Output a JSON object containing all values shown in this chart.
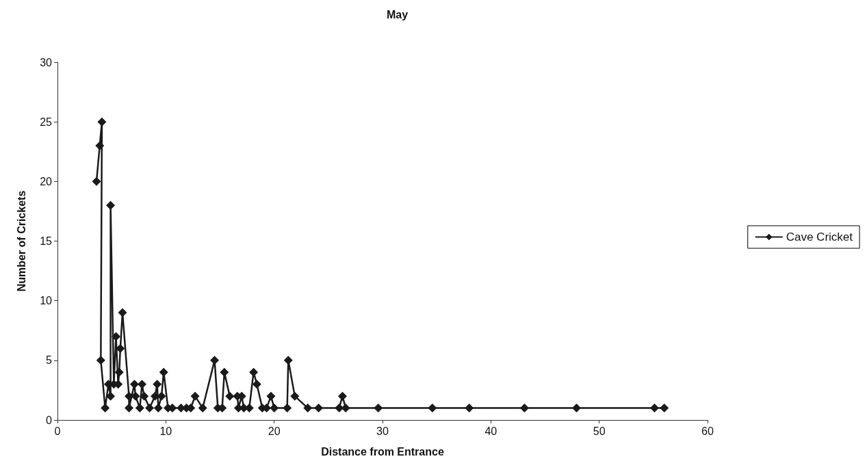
{
  "chart_data": {
    "type": "line",
    "title": "May",
    "xlabel": "Distance from Entrance",
    "ylabel": "Number of Crickets",
    "xlim": [
      0,
      60
    ],
    "xticks": [
      0,
      10,
      20,
      30,
      40,
      50,
      60
    ],
    "ylim": [
      0,
      30
    ],
    "yticks": [
      0,
      5,
      10,
      15,
      20,
      25,
      30
    ],
    "grid": false,
    "legend": "right",
    "marker": "diamond",
    "line_style": "solid",
    "series": [
      {
        "name": "Cave Cricket",
        "color": "#1a1a1a",
        "x": [
          3.6,
          3.9,
          4.1,
          4.0,
          4.4,
          4.7,
          4.9,
          4.9,
          5.2,
          5.4,
          5.6,
          5.7,
          5.8,
          6.0,
          6.6,
          6.6,
          7.1,
          7.2,
          7.6,
          7.8,
          8.0,
          8.5,
          9.0,
          9.2,
          9.3,
          9.6,
          9.8,
          10.2,
          10.6,
          11.4,
          11.9,
          12.3,
          12.7,
          13.4,
          14.5,
          14.8,
          15.2,
          15.4,
          15.9,
          16.6,
          16.7,
          17.0,
          17.2,
          17.7,
          18.1,
          18.4,
          18.9,
          19.3,
          19.7,
          20.0,
          21.2,
          21.3,
          21.9,
          23.1,
          24.1,
          26.0,
          26.3,
          26.6,
          29.6,
          34.6,
          38.0,
          43.1,
          47.9,
          55.1,
          56.0
        ],
        "values": [
          20,
          23,
          25,
          5,
          1,
          3,
          2,
          18,
          3,
          7,
          3,
          4,
          6,
          9,
          2,
          1,
          3,
          2,
          1,
          3,
          2,
          1,
          2,
          3,
          1,
          2,
          4,
          1,
          1,
          1,
          1,
          1,
          2,
          1,
          5,
          1,
          1,
          4,
          2,
          2,
          1,
          2,
          1,
          1,
          4,
          3,
          1,
          1,
          2,
          1,
          1,
          5,
          2,
          1,
          1,
          1,
          2,
          1,
          1,
          1,
          1,
          1,
          1,
          1,
          1
        ]
      }
    ]
  }
}
